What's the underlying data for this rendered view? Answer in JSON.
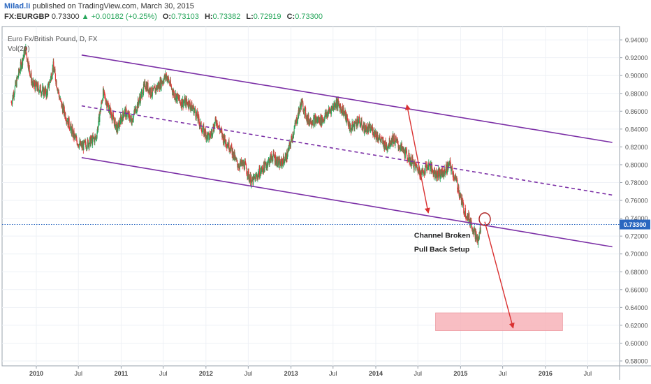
{
  "header": {
    "author": "Milad.li",
    "published": "published on TradingView.com, March 30, 2015",
    "symbol": "FX:EURGBP",
    "last": "0.73300",
    "change": "+0.00182 (+0.25%)",
    "o_label": "O:",
    "o": "0.73103",
    "h_label": "H:",
    "h": "0.73382",
    "l_label": "L:",
    "l": "0.72919",
    "c_label": "C:",
    "c": "0.73300"
  },
  "chart_data": {
    "type": "candlestick",
    "title": "Euro Fx/British Pound, D, FX",
    "volume_label": "Vol(20)",
    "y_axis_position": "right",
    "ylim": [
      0.572,
      0.95
    ],
    "y_ticks": [
      "0.94000",
      "0.92000",
      "0.90000",
      "0.88000",
      "0.86000",
      "0.84000",
      "0.82000",
      "0.80000",
      "0.78000",
      "0.76000",
      "0.74000",
      "0.72000",
      "0.70000",
      "0.68000",
      "0.66000",
      "0.64000",
      "0.62000",
      "0.60000",
      "0.58000"
    ],
    "x_ticks": [
      "2010",
      "Jul",
      "2011",
      "Jul",
      "2012",
      "Jul",
      "2013",
      "Jul",
      "2014",
      "Jul",
      "2015",
      "Jul",
      "2016",
      "Jul"
    ],
    "current_price_label": "0.73300",
    "current_price": 0.733,
    "price_path": [
      {
        "date": "2009-09",
        "price": 0.87
      },
      {
        "date": "2009-10",
        "price": 0.9
      },
      {
        "date": "2009-11",
        "price": 0.93
      },
      {
        "date": "2009-12",
        "price": 0.89
      },
      {
        "date": "2010-02",
        "price": 0.88
      },
      {
        "date": "2010-03",
        "price": 0.91
      },
      {
        "date": "2010-04",
        "price": 0.87
      },
      {
        "date": "2010-05",
        "price": 0.85
      },
      {
        "date": "2010-06",
        "price": 0.83
      },
      {
        "date": "2010-07",
        "price": 0.82
      },
      {
        "date": "2010-09",
        "price": 0.83
      },
      {
        "date": "2010-10",
        "price": 0.88
      },
      {
        "date": "2010-11",
        "price": 0.86
      },
      {
        "date": "2010-12",
        "price": 0.84
      },
      {
        "date": "2011-01",
        "price": 0.86
      },
      {
        "date": "2011-02",
        "price": 0.85
      },
      {
        "date": "2011-04",
        "price": 0.89
      },
      {
        "date": "2011-05",
        "price": 0.88
      },
      {
        "date": "2011-06",
        "price": 0.89
      },
      {
        "date": "2011-07",
        "price": 0.9
      },
      {
        "date": "2011-08",
        "price": 0.88
      },
      {
        "date": "2011-09",
        "price": 0.87
      },
      {
        "date": "2011-10",
        "price": 0.87
      },
      {
        "date": "2011-11",
        "price": 0.86
      },
      {
        "date": "2011-12",
        "price": 0.84
      },
      {
        "date": "2012-01",
        "price": 0.83
      },
      {
        "date": "2012-02",
        "price": 0.85
      },
      {
        "date": "2012-03",
        "price": 0.83
      },
      {
        "date": "2012-04",
        "price": 0.82
      },
      {
        "date": "2012-05",
        "price": 0.8
      },
      {
        "date": "2012-06",
        "price": 0.8
      },
      {
        "date": "2012-07",
        "price": 0.78
      },
      {
        "date": "2012-08",
        "price": 0.79
      },
      {
        "date": "2012-09",
        "price": 0.8
      },
      {
        "date": "2012-10",
        "price": 0.81
      },
      {
        "date": "2012-11",
        "price": 0.8
      },
      {
        "date": "2012-12",
        "price": 0.81
      },
      {
        "date": "2013-01",
        "price": 0.84
      },
      {
        "date": "2013-02",
        "price": 0.87
      },
      {
        "date": "2013-03",
        "price": 0.85
      },
      {
        "date": "2013-04",
        "price": 0.85
      },
      {
        "date": "2013-05",
        "price": 0.85
      },
      {
        "date": "2013-06",
        "price": 0.86
      },
      {
        "date": "2013-07",
        "price": 0.87
      },
      {
        "date": "2013-08",
        "price": 0.86
      },
      {
        "date": "2013-09",
        "price": 0.84
      },
      {
        "date": "2013-10",
        "price": 0.85
      },
      {
        "date": "2013-11",
        "price": 0.84
      },
      {
        "date": "2013-12",
        "price": 0.84
      },
      {
        "date": "2014-01",
        "price": 0.83
      },
      {
        "date": "2014-02",
        "price": 0.82
      },
      {
        "date": "2014-03",
        "price": 0.83
      },
      {
        "date": "2014-04",
        "price": 0.82
      },
      {
        "date": "2014-05",
        "price": 0.81
      },
      {
        "date": "2014-06",
        "price": 0.8
      },
      {
        "date": "2014-07",
        "price": 0.79
      },
      {
        "date": "2014-08",
        "price": 0.8
      },
      {
        "date": "2014-09",
        "price": 0.79
      },
      {
        "date": "2014-10",
        "price": 0.79
      },
      {
        "date": "2014-11",
        "price": 0.8
      },
      {
        "date": "2014-12",
        "price": 0.78
      },
      {
        "date": "2015-01",
        "price": 0.75
      },
      {
        "date": "2015-02",
        "price": 0.735
      },
      {
        "date": "2015-03",
        "price": 0.715
      },
      {
        "date": "2015-03-15",
        "price": 0.71
      },
      {
        "date": "2015-03-30",
        "price": 0.733
      }
    ],
    "channel": {
      "upper": {
        "start": {
          "date": "2010-07",
          "price": 0.923
        },
        "end": {
          "date": "2016-10",
          "price": 0.825
        }
      },
      "middle": {
        "start": {
          "date": "2010-07",
          "price": 0.866
        },
        "end": {
          "date": "2016-10",
          "price": 0.766
        }
      },
      "lower": {
        "start": {
          "date": "2010-07",
          "price": 0.808
        },
        "end": {
          "date": "2016-10",
          "price": 0.708
        }
      }
    },
    "annotations": [
      {
        "text": "Channel Broken",
        "date": "2014-06",
        "price": 0.718
      },
      {
        "text": "Pull Back Setup",
        "date": "2014-06",
        "price": 0.7025
      }
    ],
    "arrows": [
      {
        "from": {
          "date": "2014-05",
          "price": 0.867
        },
        "to": {
          "date": "2014-08",
          "price": 0.746
        },
        "bidirectional": true
      },
      {
        "from": {
          "date": "2015-04",
          "price": 0.736
        },
        "to": {
          "date": "2015-08",
          "price": 0.617
        },
        "bidirectional": false
      }
    ],
    "circle_marker": {
      "date": "2015-04",
      "price": 0.739
    },
    "target_zone": {
      "date_from": "2014-09",
      "date_to": "2016-03",
      "price_low": 0.614,
      "price_high": 0.634
    },
    "colors": {
      "up": "#26a65b",
      "down": "#e03b3b",
      "channel": "#7b2fa6",
      "arrow": "#d93030",
      "zone_fill": "#f7b3b8",
      "price_line": "#2a67c0",
      "price_tag": "#2a67c0",
      "grid": "#eef1f6"
    }
  }
}
